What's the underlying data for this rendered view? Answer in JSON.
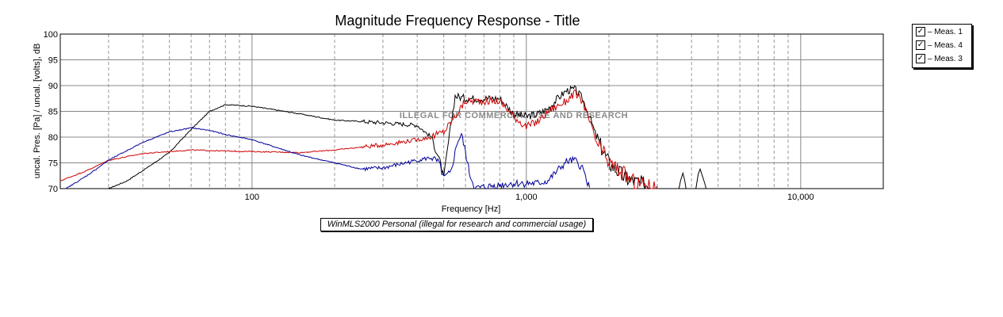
{
  "chart_data": {
    "type": "line",
    "title": "Magnitude Frequency Response - Title",
    "xlabel": "Frequency [Hz]",
    "ylabel": "uncal. Pres. [Pa] / uncal. [volts], dB",
    "x_scale": "log",
    "xlim": [
      20,
      20000
    ],
    "ylim": [
      70,
      100
    ],
    "x_tick_labels": [
      {
        "value": 100,
        "label": "100"
      },
      {
        "value": 1000,
        "label": "1,000"
      },
      {
        "value": 10000,
        "label": "10,000"
      }
    ],
    "y_ticks": [
      70,
      75,
      80,
      85,
      90,
      95,
      100
    ],
    "grid": true,
    "legend_position": "top-right",
    "watermark": "ILLEGAL FOR COMMERCIAL USE AND RESEARCH",
    "series": [
      {
        "name": "Meas. 1",
        "color": "#000000",
        "points": [
          [
            30,
            70
          ],
          [
            35,
            71.5
          ],
          [
            40,
            73.5
          ],
          [
            50,
            77
          ],
          [
            60,
            81.5
          ],
          [
            70,
            85
          ],
          [
            80,
            86.3
          ],
          [
            100,
            86
          ],
          [
            150,
            84.5
          ],
          [
            200,
            83.3
          ],
          [
            300,
            82.8
          ],
          [
            400,
            82.3
          ],
          [
            450,
            80
          ],
          [
            480,
            76
          ],
          [
            500,
            72
          ],
          [
            520,
            79
          ],
          [
            550,
            88
          ],
          [
            600,
            87.5
          ],
          [
            700,
            87.5
          ],
          [
            800,
            87.5
          ],
          [
            900,
            84.5
          ],
          [
            1000,
            84
          ],
          [
            1100,
            84.5
          ],
          [
            1200,
            85.5
          ],
          [
            1300,
            87.5
          ],
          [
            1400,
            89
          ],
          [
            1500,
            89.3
          ],
          [
            1600,
            87.5
          ],
          [
            1700,
            84
          ],
          [
            1800,
            80
          ],
          [
            2000,
            75
          ],
          [
            2300,
            72
          ],
          [
            2600,
            71
          ],
          [
            3000,
            70.5
          ]
        ]
      },
      {
        "name": "Meas. 4",
        "color": "#cc0000",
        "points": [
          [
            20,
            71.5
          ],
          [
            25,
            73.5
          ],
          [
            30,
            75.5
          ],
          [
            40,
            76.8
          ],
          [
            50,
            77.2
          ],
          [
            60,
            77.5
          ],
          [
            80,
            77.3
          ],
          [
            100,
            77.2
          ],
          [
            150,
            77
          ],
          [
            200,
            77.5
          ],
          [
            300,
            78.5
          ],
          [
            400,
            79.5
          ],
          [
            450,
            80
          ],
          [
            500,
            81
          ],
          [
            550,
            84
          ],
          [
            600,
            87
          ],
          [
            700,
            87
          ],
          [
            800,
            87
          ],
          [
            900,
            84
          ],
          [
            1000,
            82
          ],
          [
            1100,
            83
          ],
          [
            1200,
            85
          ],
          [
            1400,
            87
          ],
          [
            1500,
            88.5
          ],
          [
            1600,
            87
          ],
          [
            1700,
            83
          ],
          [
            1800,
            79
          ],
          [
            2000,
            75
          ],
          [
            2500,
            71
          ],
          [
            3000,
            70.2
          ]
        ]
      },
      {
        "name": "Meas. 3",
        "color": "#000099",
        "points": [
          [
            21,
            70
          ],
          [
            25,
            72.5
          ],
          [
            30,
            75.5
          ],
          [
            40,
            79
          ],
          [
            50,
            81
          ],
          [
            60,
            81.8
          ],
          [
            70,
            81.3
          ],
          [
            80,
            80.5
          ],
          [
            100,
            79.5
          ],
          [
            150,
            76.5
          ],
          [
            200,
            75
          ],
          [
            250,
            73.8
          ],
          [
            300,
            74
          ],
          [
            400,
            75.5
          ],
          [
            450,
            76
          ],
          [
            480,
            75
          ],
          [
            500,
            72
          ],
          [
            530,
            73
          ],
          [
            560,
            79
          ],
          [
            580,
            80.5
          ],
          [
            600,
            77
          ],
          [
            620,
            73
          ],
          [
            650,
            70
          ],
          [
            750,
            70.5
          ],
          [
            900,
            71
          ],
          [
            1000,
            71
          ],
          [
            1100,
            71
          ],
          [
            1200,
            71.5
          ],
          [
            1300,
            73.5
          ],
          [
            1400,
            75.2
          ],
          [
            1500,
            75.5
          ],
          [
            1600,
            74
          ],
          [
            1700,
            70.2
          ]
        ]
      }
    ]
  },
  "legend": {
    "items": [
      {
        "check": "✓",
        "label": "– Meas. 1"
      },
      {
        "check": "✓",
        "label": "– Meas. 4"
      },
      {
        "check": "✓",
        "label": "– Meas. 3"
      }
    ]
  },
  "footer_note": "WinMLS2000 Personal (illegal for research and commercial usage)"
}
